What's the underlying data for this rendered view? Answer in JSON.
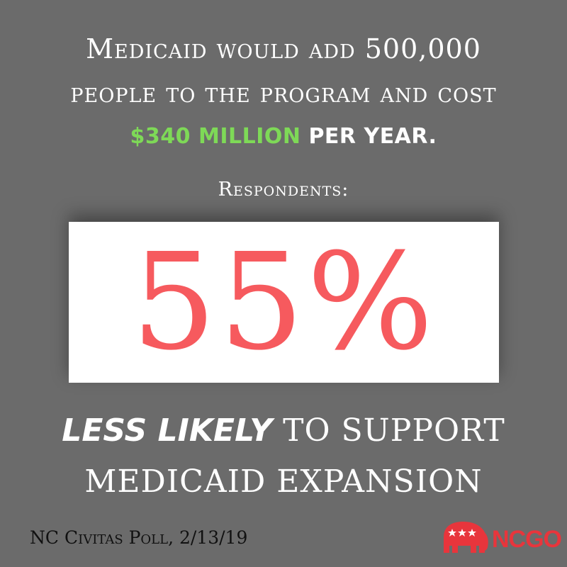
{
  "headline": {
    "line1": "Medicaid would add 500,000",
    "line2": "people to the program and cost",
    "line3_accent": "$340 MILLION",
    "line3_rest": " PER YEAR."
  },
  "respondents_label": "Respondents:",
  "stat": {
    "value": "55%"
  },
  "tagline": {
    "emphasis": "LESS LIKELY",
    "rest_line1": " TO SUPPORT",
    "line2": "MEDICAID EXPANSION"
  },
  "source": "NC Civitas Poll, 2/13/19",
  "logo": {
    "text": "NCGOP",
    "icon": "elephant-icon"
  },
  "colors": {
    "background": "#6b6b6b",
    "accent_green": "#7ed957",
    "stat_red": "#f65a5e",
    "logo_red": "#e8353c"
  }
}
